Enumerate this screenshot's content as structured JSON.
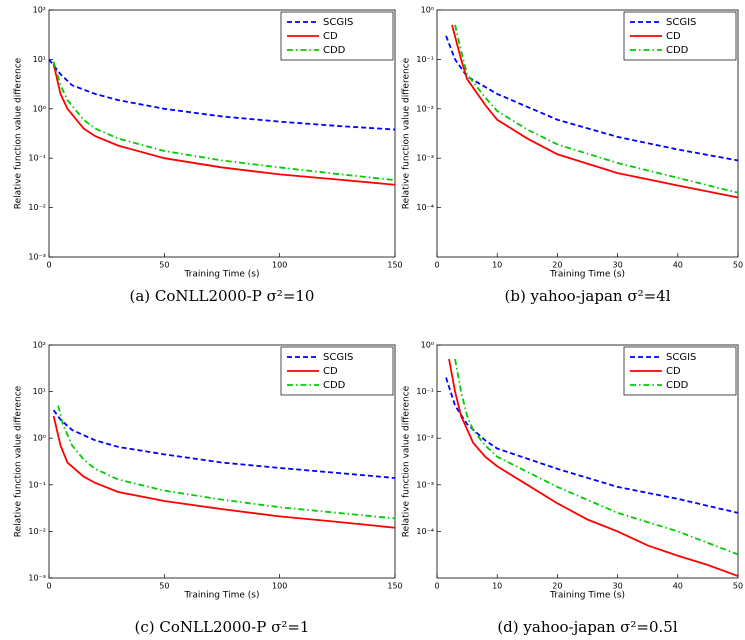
{
  "chart_data": [
    {
      "type": "line",
      "caption": "(a) CoNLL2000-P σ²=10",
      "x_label": "Training Time (s)",
      "y_label": "Relative function value difference",
      "log_y": true,
      "legend": "upper right",
      "xlim": [
        0,
        150
      ],
      "xticks": [
        0,
        50,
        100,
        150
      ],
      "ylim": [
        0.001,
        100
      ],
      "yticks": [
        {
          "value": 0.001,
          "label": "10⁻³"
        },
        {
          "value": 0.01,
          "label": "10⁻²"
        },
        {
          "value": 0.1,
          "label": "10⁻¹"
        },
        {
          "value": 1,
          "label": "10⁰"
        },
        {
          "value": 10,
          "label": "10¹"
        },
        {
          "value": 100,
          "label": "10²"
        }
      ],
      "series": [
        {
          "name": "SCGIS",
          "color": "#0000ff",
          "linestyle": "--",
          "x": [
            0,
            5,
            10,
            20,
            30,
            50,
            75,
            100,
            125,
            150
          ],
          "values": [
            10,
            5,
            3,
            2,
            1.5,
            1.0,
            0.7,
            0.55,
            0.45,
            0.38
          ]
        },
        {
          "name": "CD",
          "color": "#ff0000",
          "linestyle": "-",
          "x": [
            2,
            5,
            8,
            15,
            20,
            30,
            50,
            75,
            100,
            125,
            150
          ],
          "values": [
            8,
            2,
            1,
            0.4,
            0.28,
            0.18,
            0.1,
            0.065,
            0.047,
            0.037,
            0.029
          ]
        },
        {
          "name": "CDD",
          "color": "#00cc00",
          "linestyle": "-.",
          "x": [
            2,
            5,
            8,
            15,
            20,
            30,
            50,
            75,
            100,
            125,
            150
          ],
          "values": [
            9,
            3,
            1.5,
            0.6,
            0.4,
            0.25,
            0.14,
            0.09,
            0.065,
            0.048,
            0.036
          ]
        }
      ]
    },
    {
      "type": "line",
      "caption": "(b) yahoo-japan σ²=4l",
      "x_label": "Training Time (s)",
      "y_label": "Relative function value difference",
      "log_y": true,
      "legend": "upper right",
      "xlim": [
        0,
        50
      ],
      "xticks": [
        0,
        10,
        20,
        30,
        40,
        50
      ],
      "ylim": [
        1e-05,
        1
      ],
      "yticks": [
        {
          "value": 0.0001,
          "label": "10⁻⁴"
        },
        {
          "value": 0.001,
          "label": "10⁻³"
        },
        {
          "value": 0.01,
          "label": "10⁻²"
        },
        {
          "value": 0.1,
          "label": "10⁻¹"
        },
        {
          "value": 1,
          "label": "10⁰"
        }
      ],
      "series": [
        {
          "name": "SCGIS",
          "color": "#0000ff",
          "linestyle": "--",
          "x": [
            1.5,
            3,
            5,
            10,
            20,
            30,
            40,
            50
          ],
          "values": [
            0.3,
            0.1,
            0.045,
            0.02,
            0.006,
            0.0027,
            0.0015,
            0.0009
          ]
        },
        {
          "name": "CD",
          "color": "#ff0000",
          "linestyle": "-",
          "x": [
            2.5,
            4,
            5,
            8,
            10,
            15,
            20,
            30,
            40,
            50
          ],
          "values": [
            0.5,
            0.1,
            0.04,
            0.012,
            0.006,
            0.0025,
            0.0012,
            0.0005,
            0.00028,
            0.00016
          ]
        },
        {
          "name": "CDD",
          "color": "#00cc00",
          "linestyle": "-.",
          "x": [
            3,
            4,
            5,
            8,
            10,
            15,
            20,
            30,
            40,
            50
          ],
          "values": [
            0.5,
            0.15,
            0.05,
            0.017,
            0.009,
            0.0038,
            0.0019,
            0.0008,
            0.0004,
            0.0002
          ]
        }
      ]
    },
    {
      "type": "line",
      "caption": "(c) CoNLL2000-P σ²=1",
      "x_label": "Training Time (s)",
      "y_label": "Relative function value difference",
      "log_y": true,
      "legend": "upper right",
      "xlim": [
        0,
        150
      ],
      "xticks": [
        0,
        50,
        100,
        150
      ],
      "ylim": [
        0.001,
        100
      ],
      "yticks": [
        {
          "value": 0.001,
          "label": "10⁻³"
        },
        {
          "value": 0.01,
          "label": "10⁻²"
        },
        {
          "value": 0.1,
          "label": "10⁻¹"
        },
        {
          "value": 1,
          "label": "10⁰"
        },
        {
          "value": 10,
          "label": "10¹"
        },
        {
          "value": 100,
          "label": "10²"
        }
      ],
      "series": [
        {
          "name": "SCGIS",
          "color": "#0000ff",
          "linestyle": "--",
          "x": [
            2,
            5,
            10,
            20,
            30,
            50,
            75,
            100,
            125,
            150
          ],
          "values": [
            4,
            2.5,
            1.5,
            0.9,
            0.65,
            0.45,
            0.3,
            0.23,
            0.18,
            0.14
          ]
        },
        {
          "name": "CD",
          "color": "#ff0000",
          "linestyle": "-",
          "x": [
            2,
            5,
            8,
            15,
            20,
            30,
            50,
            75,
            100,
            125,
            150
          ],
          "values": [
            3,
            0.7,
            0.3,
            0.15,
            0.11,
            0.07,
            0.045,
            0.03,
            0.021,
            0.016,
            0.012
          ]
        },
        {
          "name": "CDD",
          "color": "#00cc00",
          "linestyle": "-.",
          "x": [
            4,
            6,
            10,
            15,
            20,
            30,
            50,
            75,
            100,
            125,
            150
          ],
          "values": [
            5,
            2,
            0.7,
            0.35,
            0.22,
            0.13,
            0.075,
            0.048,
            0.033,
            0.025,
            0.019
          ]
        }
      ]
    },
    {
      "type": "line",
      "caption": "(d) yahoo-japan σ²=0.5l",
      "x_label": "Training Time (s)",
      "y_label": "Relative function value difference",
      "log_y": true,
      "legend": "upper right",
      "xlim": [
        0,
        50
      ],
      "xticks": [
        0,
        10,
        20,
        30,
        40,
        50
      ],
      "ylim": [
        1e-05,
        1
      ],
      "yticks": [
        {
          "value": 0.0001,
          "label": "10⁻⁴"
        },
        {
          "value": 0.001,
          "label": "10⁻³"
        },
        {
          "value": 0.01,
          "label": "10⁻²"
        },
        {
          "value": 0.1,
          "label": "10⁻¹"
        },
        {
          "value": 1,
          "label": "10⁰"
        }
      ],
      "series": [
        {
          "name": "SCGIS",
          "color": "#0000ff",
          "linestyle": "--",
          "x": [
            1.5,
            3,
            5,
            8,
            10,
            20,
            30,
            40,
            50
          ],
          "values": [
            0.2,
            0.05,
            0.02,
            0.009,
            0.006,
            0.0022,
            0.0009,
            0.0005,
            0.00025
          ]
        },
        {
          "name": "CD",
          "color": "#ff0000",
          "linestyle": "-",
          "x": [
            2,
            3,
            4,
            6,
            8,
            10,
            15,
            20,
            25,
            30,
            35,
            40,
            45,
            50
          ],
          "values": [
            0.5,
            0.1,
            0.03,
            0.008,
            0.004,
            0.0025,
            0.001,
            0.0004,
            0.00018,
            0.0001,
            5e-05,
            3e-05,
            1.9e-05,
            1.1e-05
          ]
        },
        {
          "name": "CDD",
          "color": "#00cc00",
          "linestyle": "-.",
          "x": [
            3,
            4,
            5,
            6,
            8,
            10,
            20,
            30,
            40,
            50
          ],
          "values": [
            0.5,
            0.1,
            0.03,
            0.015,
            0.007,
            0.004,
            0.0009,
            0.00025,
            0.0001,
            3.2e-05
          ]
        }
      ]
    }
  ]
}
